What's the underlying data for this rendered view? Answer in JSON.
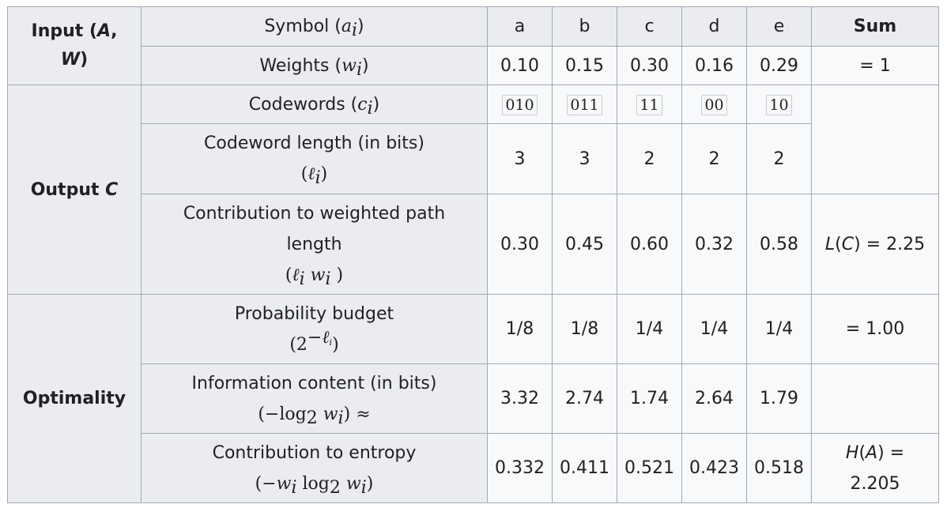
{
  "row_headers": {
    "input": [
      "Input (",
      "A",
      ", ",
      "W",
      ")"
    ],
    "output": [
      "Output ",
      "C"
    ],
    "optimality": "Optimality"
  },
  "labels": {
    "symbol": [
      "Symbol (",
      "a",
      "i",
      ")"
    ],
    "weights": [
      "Weights (",
      "w",
      "i",
      ")"
    ],
    "codewords": [
      "Codewords (",
      "c",
      "i",
      ")"
    ],
    "codeword_length": [
      "Codeword length (in bits)",
      "(",
      "ℓ",
      "i",
      ")"
    ],
    "contribution_path": [
      "Contribution to weighted path length",
      "(",
      "ℓ",
      "i",
      " ",
      "w",
      "i",
      " )"
    ],
    "probability_budget": [
      "Probability budget",
      "(2",
      "−ℓ",
      "i",
      ")"
    ],
    "information_content": [
      "Information content (in bits)",
      "(−log",
      "2",
      " ",
      "w",
      "i",
      ") ≈"
    ],
    "contribution_entropy": [
      "Contribution to entropy",
      "(−",
      "w",
      "i",
      " log",
      "2",
      " ",
      "w",
      "i",
      ")"
    ]
  },
  "sum_header": "Sum",
  "symbols": [
    "a",
    "b",
    "c",
    "d",
    "e"
  ],
  "weights": [
    "0.10",
    "0.15",
    "0.30",
    "0.16",
    "0.29"
  ],
  "codewords": [
    "010",
    "011",
    "11",
    "00",
    "10"
  ],
  "codeword_lengths": [
    "3",
    "3",
    "2",
    "2",
    "2"
  ],
  "path_contributions": [
    "0.30",
    "0.45",
    "0.60",
    "0.32",
    "0.58"
  ],
  "probability_budgets": [
    "1/8",
    "1/8",
    "1/4",
    "1/4",
    "1/4"
  ],
  "information_contents": [
    "3.32",
    "2.74",
    "1.74",
    "2.64",
    "1.79"
  ],
  "entropy_contributions": [
    "0.332",
    "0.411",
    "0.521",
    "0.423",
    "0.518"
  ],
  "sums": {
    "weights": "= 1",
    "path_length": [
      "L",
      "(",
      "C",
      ") = 2.25"
    ],
    "probability_budget": "= 1.00",
    "entropy": [
      "H",
      "(",
      "A",
      ") =",
      "2.205"
    ]
  }
}
